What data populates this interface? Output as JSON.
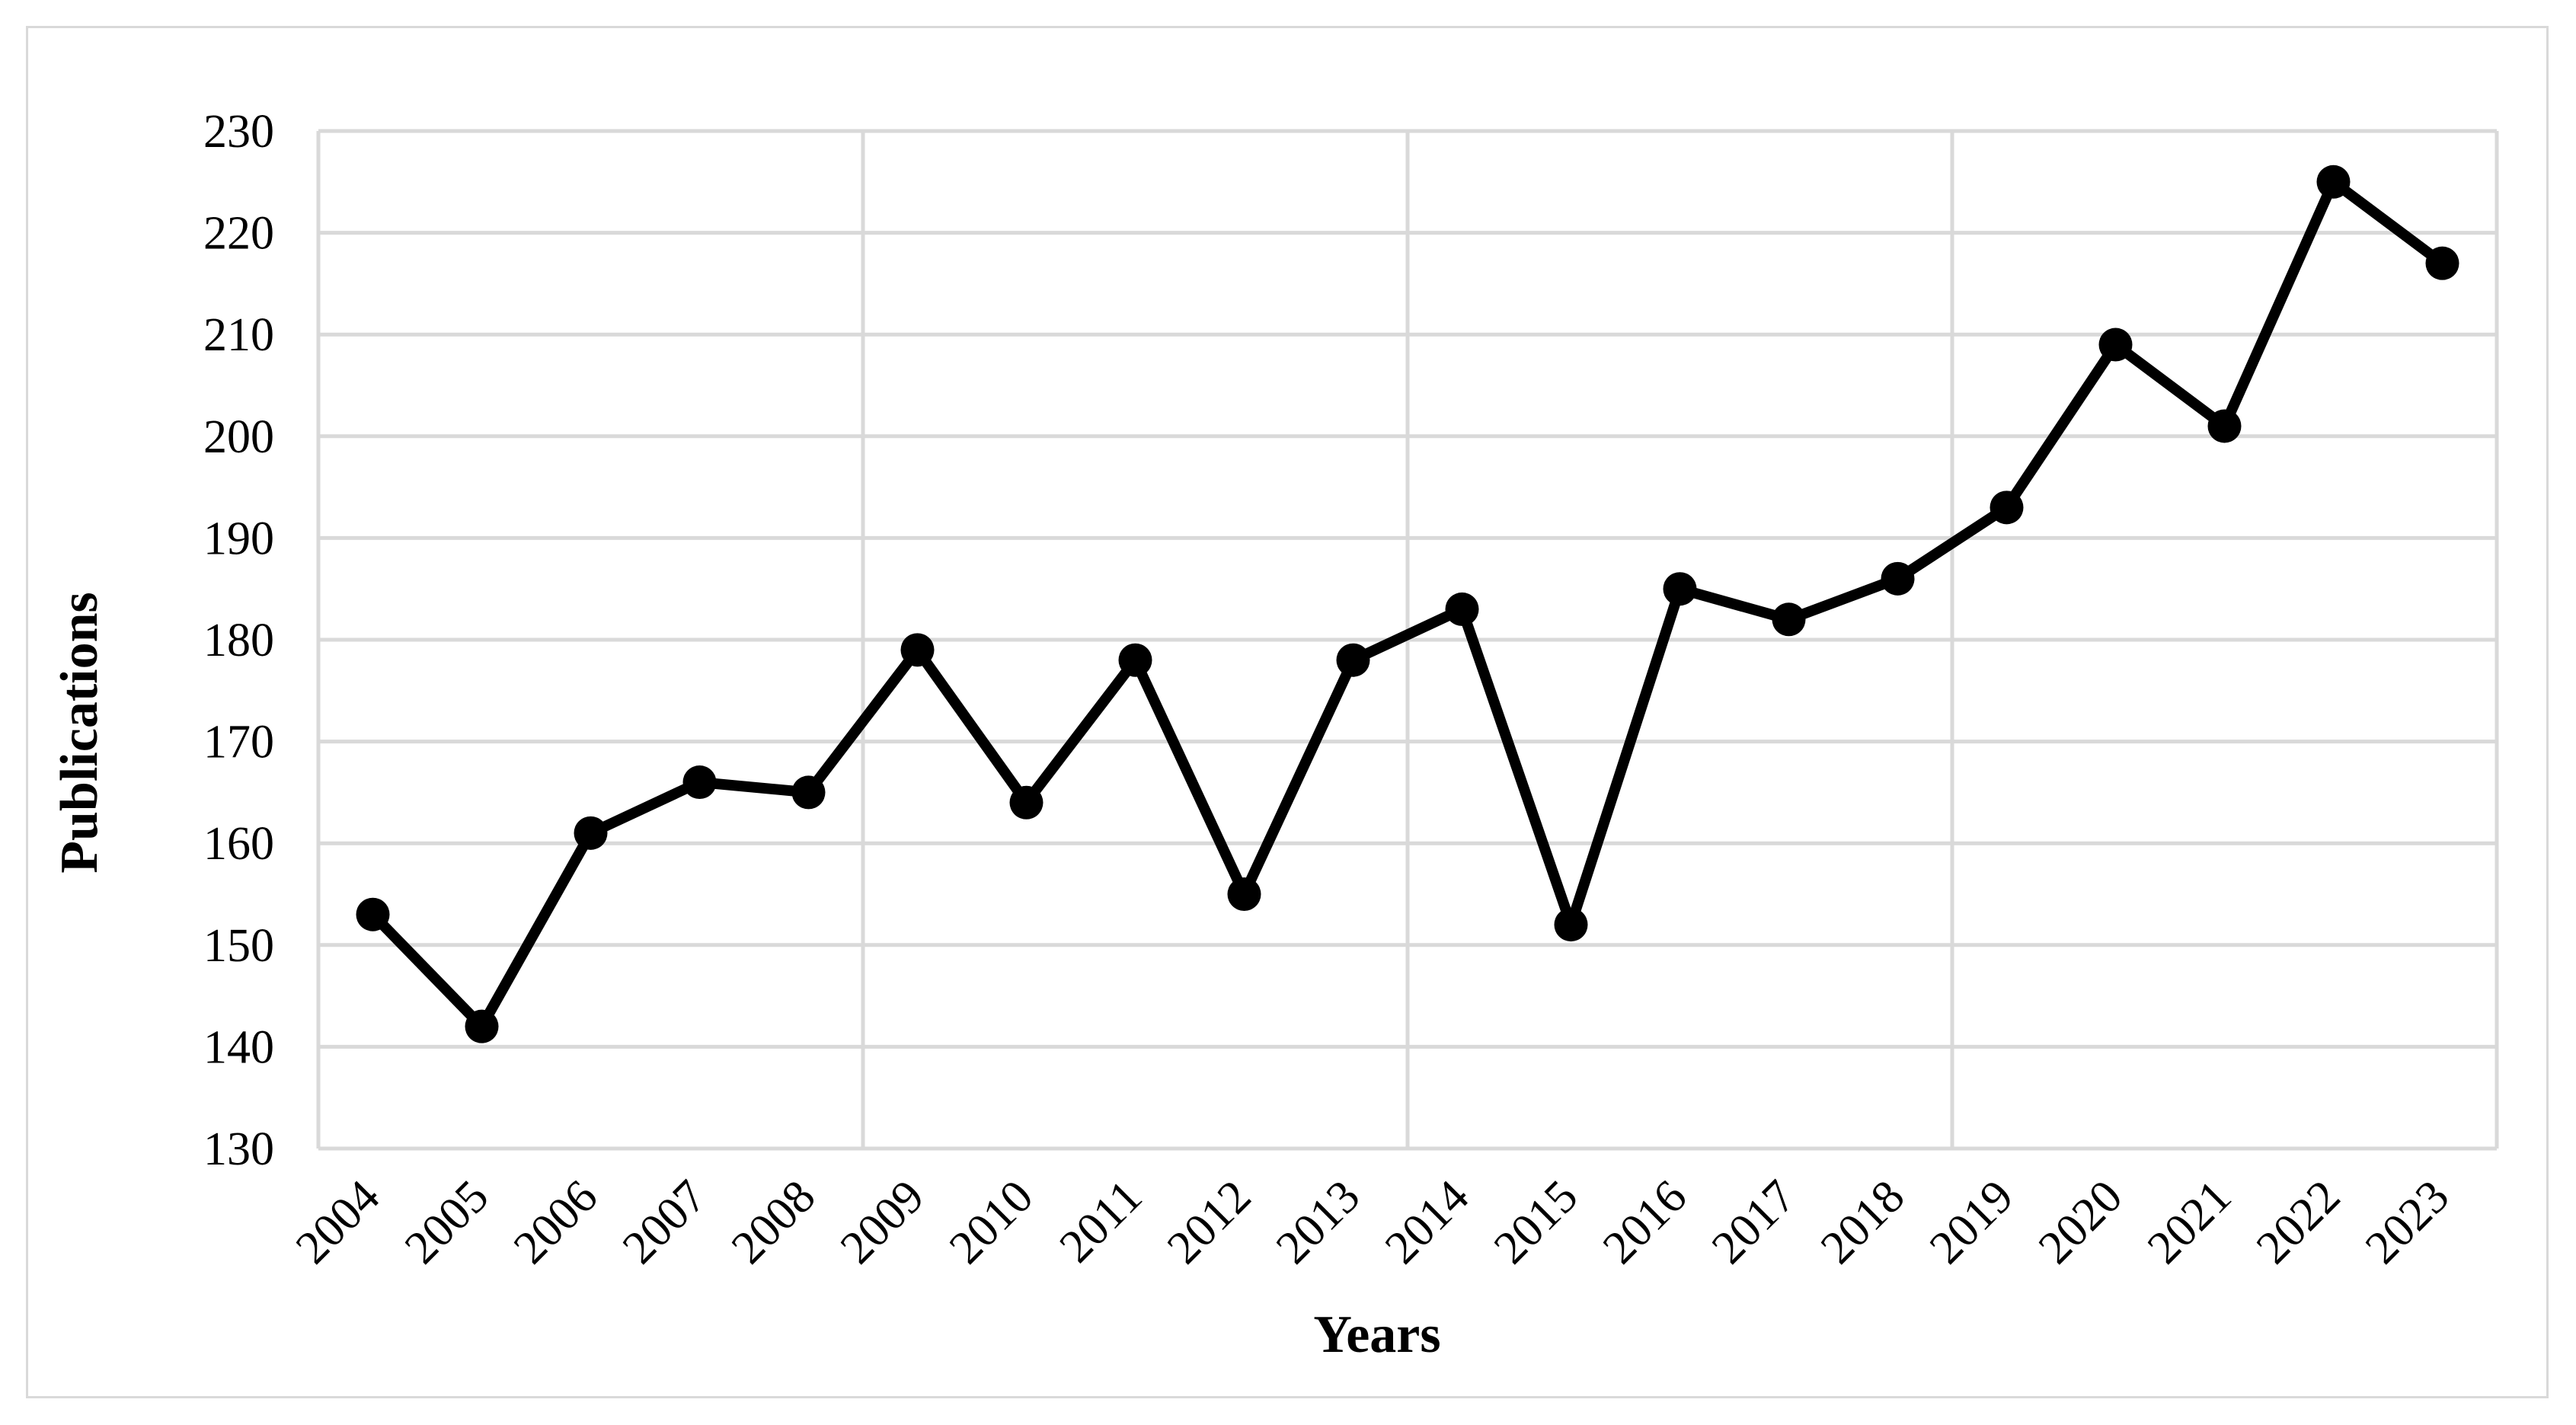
{
  "chart_data": {
    "type": "line",
    "title": "",
    "xlabel": "Years",
    "ylabel": "Publications",
    "categories": [
      "2004",
      "2005",
      "2006",
      "2007",
      "2008",
      "2009",
      "2010",
      "2011",
      "2012",
      "2013",
      "2014",
      "2015",
      "2016",
      "2017",
      "2018",
      "2019",
      "2020",
      "2021",
      "2022",
      "2023"
    ],
    "series": [
      {
        "values": [
          153,
          142,
          161,
          166,
          165,
          179,
          164,
          178,
          155,
          178,
          183,
          152,
          185,
          182,
          186,
          193,
          209,
          201,
          225,
          217
        ]
      }
    ],
    "ylim": [
      130,
      230
    ],
    "yticks": [
      "130",
      "140",
      "150",
      "160",
      "170",
      "180",
      "190",
      "200",
      "210",
      "220",
      "230"
    ],
    "grid": true,
    "legend": "none",
    "colors": {
      "line": "#000000",
      "marker": "#000000",
      "grid": "#d9d9d9",
      "frame": "#d9d9d9"
    },
    "marker": "circle"
  }
}
